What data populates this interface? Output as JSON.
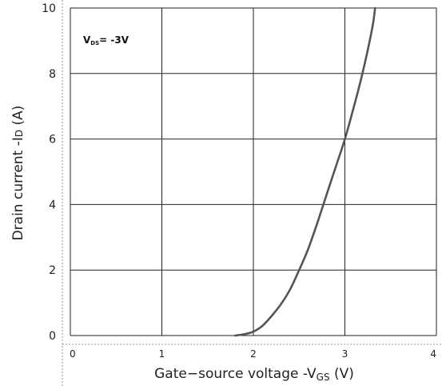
{
  "chart_data": {
    "type": "line",
    "xlabel_main": "Gate−source voltage -V",
    "xlabel_sub": "GS",
    "xlabel_unit": " (V)",
    "ylabel_main": "Drain current -I",
    "ylabel_sub": "D",
    "ylabel_unit": " (A)",
    "annotation_main": "V",
    "annotation_sub": "DS",
    "annotation_tail": "= -3V",
    "xlim": [
      0,
      4
    ],
    "ylim": [
      0,
      10
    ],
    "xticks": [
      "0",
      "1",
      "2",
      "3",
      "4"
    ],
    "yticks": [
      "0",
      "2",
      "4",
      "6",
      "8",
      "10"
    ],
    "grid": true,
    "series": [
      {
        "x": [
          1.8,
          1.9,
          2.0,
          2.1,
          2.2,
          2.3,
          2.4,
          2.5,
          2.6,
          2.7,
          2.8,
          2.9,
          3.0,
          3.1,
          3.2,
          3.3,
          3.33
        ],
        "y": [
          0.0,
          0.04,
          0.12,
          0.3,
          0.6,
          0.95,
          1.4,
          2.0,
          2.65,
          3.45,
          4.3,
          5.15,
          6.0,
          7.0,
          8.1,
          9.4,
          10.0
        ]
      }
    ]
  }
}
